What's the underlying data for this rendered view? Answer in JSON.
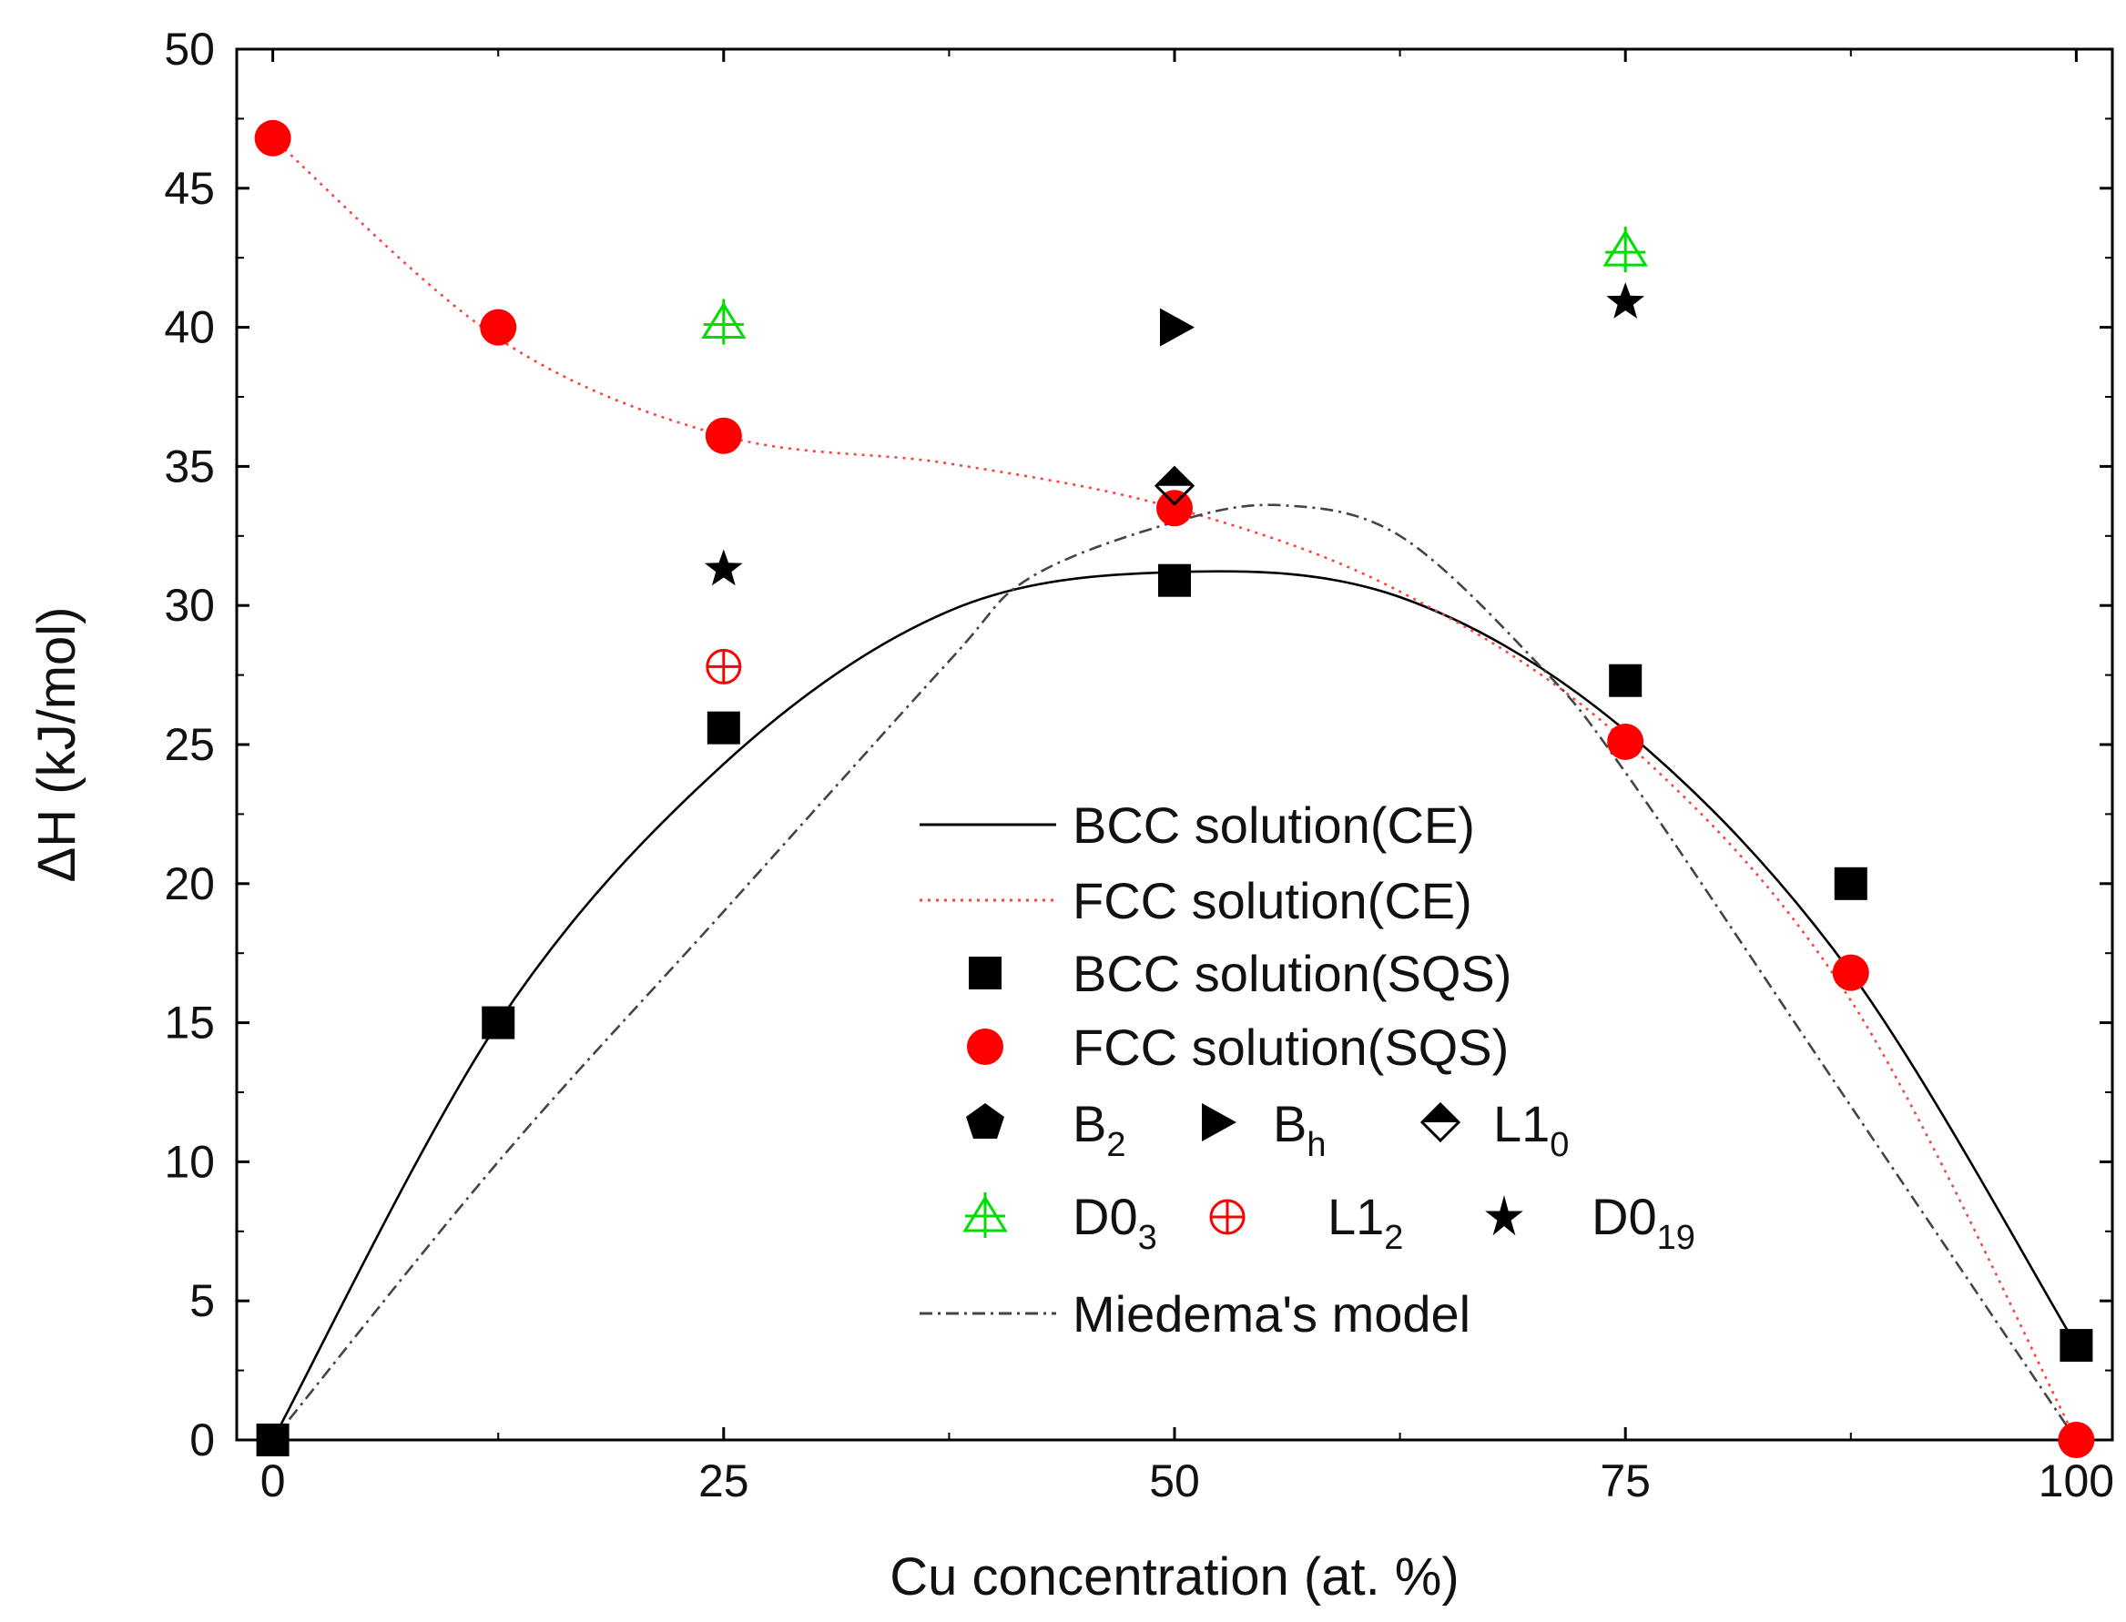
{
  "chart_data": {
    "type": "scatter",
    "title": "",
    "xlabel": "Cu concentration (at. %)",
    "ylabel": "ΔH (kJ/mol)",
    "xlim": [
      -2,
      102
    ],
    "ylim": [
      0,
      50
    ],
    "x_ticks": [
      0,
      25,
      50,
      75,
      100
    ],
    "y_ticks": [
      0,
      5,
      10,
      15,
      20,
      25,
      30,
      35,
      40,
      45,
      50
    ],
    "grid": false,
    "legend_position": "lower-right",
    "colors": {
      "black": "#000000",
      "red": "#ff0000",
      "green": "#00dd00",
      "fcc_line": "#ff4040",
      "miedema": "#444444"
    },
    "series": [
      {
        "name": "BCC solution(CE)",
        "kind": "line",
        "style": "solid",
        "color": "#000000",
        "x": [
          0,
          12.5,
          25,
          37.5,
          50,
          62.5,
          75,
          87.5,
          100
        ],
        "y": [
          0,
          15,
          24.3,
          29.8,
          31.2,
          30.3,
          25.5,
          16.8,
          3.4
        ]
      },
      {
        "name": "FCC solution(CE)",
        "kind": "line",
        "style": "dotted",
        "color": "#ff4040",
        "x": [
          0,
          12.5,
          25,
          37.5,
          50,
          62.5,
          75,
          87.5,
          100
        ],
        "y": [
          46.8,
          39.6,
          36.1,
          35.1,
          33.5,
          30.5,
          25.1,
          15.8,
          0
        ]
      },
      {
        "name": "BCC solution(SQS)",
        "kind": "marker",
        "marker": "square",
        "color": "#000000",
        "x": [
          0,
          12.5,
          25,
          50,
          75,
          87.5,
          100
        ],
        "y": [
          0,
          15,
          25.6,
          30.9,
          27.3,
          20,
          3.4
        ]
      },
      {
        "name": "FCC solution(SQS)",
        "kind": "marker",
        "marker": "circle",
        "color": "#ff0000",
        "x": [
          0,
          12.5,
          25,
          50,
          75,
          87.5,
          100
        ],
        "y": [
          46.8,
          40,
          36.1,
          33.5,
          25.1,
          16.8,
          0
        ]
      },
      {
        "name": "B2",
        "label_main": "B",
        "label_sub": "2",
        "kind": "marker",
        "marker": "pentagon",
        "color": "#000000",
        "x": [],
        "y": []
      },
      {
        "name": "Bh",
        "label_main": "B",
        "label_sub": "h",
        "kind": "marker",
        "marker": "triangle-right",
        "color": "#000000",
        "x": [
          50
        ],
        "y": [
          40
        ]
      },
      {
        "name": "L10",
        "label_main": "L1",
        "label_sub": "0",
        "kind": "marker",
        "marker": "half-diamond",
        "color": "#000000",
        "x": [
          50
        ],
        "y": [
          34.3
        ]
      },
      {
        "name": "D03",
        "label_main": "D0",
        "label_sub": "3",
        "kind": "marker",
        "marker": "triangle-cross",
        "color": "#00dd00",
        "x": [
          25,
          75
        ],
        "y": [
          40.1,
          42.7
        ]
      },
      {
        "name": "L12",
        "label_main": "L1",
        "label_sub": "2",
        "kind": "marker",
        "marker": "circle-plus",
        "color": "#ff0000",
        "x": [
          25
        ],
        "y": [
          27.8
        ]
      },
      {
        "name": "D019",
        "label_main": "D0",
        "label_sub": "19",
        "kind": "marker",
        "marker": "star",
        "color": "#000000",
        "x": [
          25,
          75
        ],
        "y": [
          31.3,
          40.9
        ]
      },
      {
        "name": "Miedema's model",
        "kind": "line",
        "style": "dashdot",
        "color": "#444444",
        "x": [
          0,
          12.5,
          25,
          37.5,
          42,
          50,
          56,
          62.5,
          70,
          75,
          87.5,
          100
        ],
        "y": [
          0,
          10,
          19,
          28,
          31,
          33,
          33.6,
          32.5,
          28,
          24,
          12,
          0
        ]
      }
    ]
  }
}
